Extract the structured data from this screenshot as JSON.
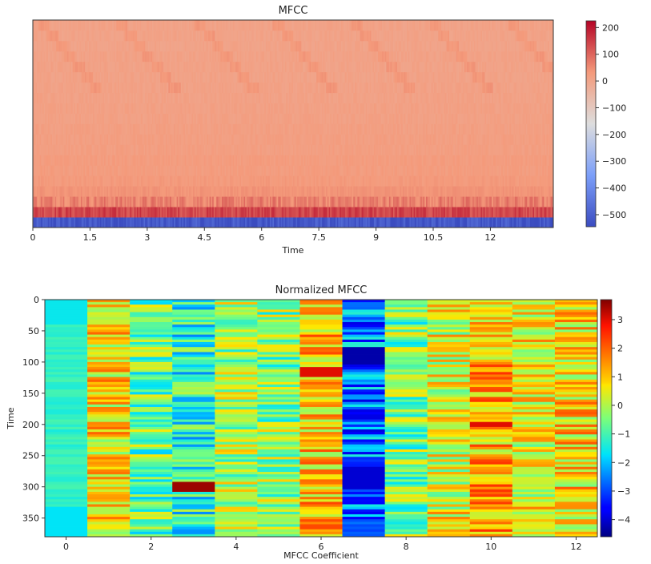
{
  "chart_data": [
    {
      "type": "heatmap",
      "title": "MFCC",
      "xlabel": "Time",
      "ylabel": "",
      "x_ticks": [
        "0",
        "1.5",
        "3",
        "4.5",
        "6",
        "7.5",
        "9",
        "10.5",
        "12"
      ],
      "xlim": [
        0,
        13.65
      ],
      "y_ticks": [],
      "n_rows": 20,
      "n_cols": 380,
      "colormap": "coolwarm",
      "colorbar": {
        "ticks": [
          "200",
          "100",
          "0",
          "−100",
          "−200",
          "−300",
          "−400",
          "−500"
        ],
        "range": [
          -545,
          225
        ]
      },
      "row_means": [
        -520,
        140,
        65,
        40,
        30,
        25,
        25,
        20,
        20,
        18,
        15,
        15,
        12,
        12,
        10,
        10,
        10,
        8,
        8,
        8
      ]
    },
    {
      "type": "heatmap",
      "title": "Normalized MFCC",
      "xlabel": "MFCC Coefficient",
      "ylabel": "Time",
      "x_ticks": [
        "0",
        "2",
        "4",
        "6",
        "8",
        "10",
        "12"
      ],
      "x_range": [
        -0.5,
        12.5
      ],
      "y_ticks": [
        "0",
        "50",
        "100",
        "150",
        "200",
        "250",
        "300",
        "350"
      ],
      "y_range": [
        0,
        380
      ],
      "n_coefficients": 13,
      "n_frames": 380,
      "colormap": "jet",
      "colorbar": {
        "ticks": [
          "3",
          "2",
          "1",
          "0",
          "−1",
          "−2",
          "−3",
          "−4"
        ],
        "range": [
          -4.6,
          3.7
        ]
      },
      "column_means": [
        -1.5,
        0.7,
        -0.6,
        -1.2,
        -0.2,
        -0.4,
        1.0,
        -2.6,
        -0.5,
        0.4,
        1.2,
        0.5,
        0.8
      ],
      "highlights": [
        {
          "coefficient": 3,
          "frames": [
            290,
            305
          ],
          "value": 3.5
        },
        {
          "coefficient": 6,
          "frames": [
            108,
            120
          ],
          "value": 3.0
        },
        {
          "coefficient": 7,
          "frames": [
            75,
            100
          ],
          "value": -4.3
        },
        {
          "coefficient": 7,
          "frames": [
            265,
            300
          ],
          "value": -4.0
        },
        {
          "coefficient": 10,
          "frames": [
            195,
            200
          ],
          "value": 3.0
        }
      ]
    }
  ]
}
